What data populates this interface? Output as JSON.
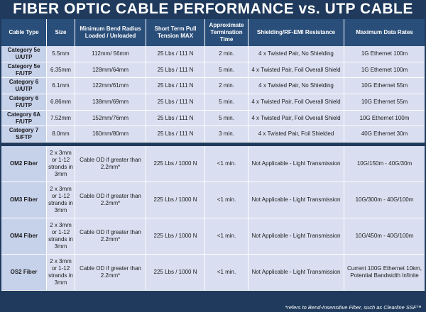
{
  "title": "FIBER OPTIC CABLE PERFORMANCE vs. UTP CABLE",
  "headers": [
    "Cable Type",
    "Size",
    "Minimum Bend Radius Loaded / Unloaded",
    "Short Term Pull Tension MAX",
    "Approximate Termination Time",
    "Shielding/RF-EMI Resistance",
    "Maximum Data Rates"
  ],
  "copper_rows": [
    [
      "Category 5e U/UTP",
      "5.5mm",
      "112mm/ 56mm",
      "25 Lbs / 111 N",
      "2 min.",
      "4 x Twisted Pair, No Shielding",
      "1G Ethernet 100m"
    ],
    [
      "Category 5e F/UTP",
      "6.35mm",
      "128mm/64mm",
      "25 Lbs / 111 N",
      "5 min.",
      "4 x Twisted Pair, Foil Overall Shield",
      "1G Ethernet 100m"
    ],
    [
      "Category 6 U/UTP",
      "6.1mm",
      "122mm/61mm",
      "25 Lbs / 111 N",
      "2 min.",
      "4 x Twisted Pair, No Shielding",
      "10G Ethernet 55m"
    ],
    [
      "Category 6 F/UTP",
      "6.86mm",
      "138mm/69mm",
      "25 Lbs / 111 N",
      "5 min.",
      "4 x Twisted Pair, Foil Overall Shield",
      "10G Ethernet 55m"
    ],
    [
      "Category 6A F/UTP",
      "7.52mm",
      "152mm/76mm",
      "25 Lbs / 111 N",
      "5 min.",
      "4 x Twisted Pair, Foil Overall Shield",
      "10G Ethernet 100m"
    ],
    [
      "Category 7 S/FTP",
      "8.0mm",
      "160mm/80mm",
      "25 Lbs / 111 N",
      "3 min.",
      "4 x Twisted Pair, Foil Shielded",
      "40G Ethernet 30m"
    ]
  ],
  "fiber_rows": [
    [
      "OM2 Fiber",
      "2 x 3mm or 1-12 strands in 3mm",
      "Cable OD if greater than 2.2mm*",
      "225 Lbs / 1000 N",
      "<1 min.",
      "Not Applicable - Light Transmission",
      "10G/150m - 40G/30m"
    ],
    [
      "OM3 Fiber",
      "2 x 3mm or 1-12 strands in 3mm",
      "Cable OD if greater than 2.2mm*",
      "225 Lbs / 1000 N",
      "<1 min.",
      "Not Applicable - Light Transmission",
      "10G/300m - 40G/100m"
    ],
    [
      "OM4 Fiber",
      "2 x 3mm or 1-12 strands in 3mm",
      "Cable OD if greater than 2.2mm*",
      "225 Lbs / 1000 N",
      "<1 min.",
      "Not Applicable - Light Transmission",
      "10G/450m - 40G/100m"
    ],
    [
      "OS2 Fiber",
      "2 x 3mm or 1-12 strands in 3mm",
      "Cable OD if greater than 2.2mm*",
      "225 Lbs / 1000 N",
      "<1 min.",
      "Not Applicable - Light Transmission",
      "Current 100G Ethernet 10km, Potential Bandwidth Infinite"
    ]
  ],
  "footnote": "*refers to Bend-Insensitive Fiber, such as Clearline SSF™"
}
